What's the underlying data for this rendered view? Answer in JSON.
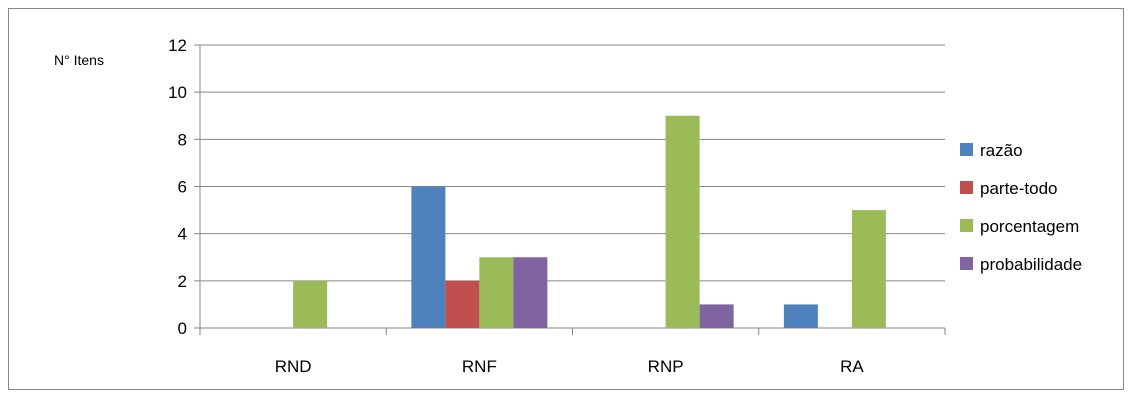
{
  "chart_data": {
    "type": "bar",
    "title": "",
    "xlabel": "",
    "ylabel": "N° Itens",
    "categories": [
      "RND",
      "RNF",
      "RNP",
      "RA"
    ],
    "ylim": [
      0,
      12
    ],
    "yticks": [
      0,
      2,
      4,
      6,
      8,
      10,
      12
    ],
    "grid": true,
    "legend_position": "right",
    "series": [
      {
        "name": "razão",
        "color": "#4F81BD",
        "values": [
          0,
          6,
          0,
          1
        ]
      },
      {
        "name": "parte-todo",
        "color": "#C0504D",
        "values": [
          0,
          2,
          0,
          0
        ]
      },
      {
        "name": "porcentagem",
        "color": "#9BBB59",
        "values": [
          2,
          3,
          9,
          5
        ]
      },
      {
        "name": "probabilidade",
        "color": "#8064A2",
        "values": [
          0,
          3,
          1,
          0
        ]
      }
    ]
  }
}
